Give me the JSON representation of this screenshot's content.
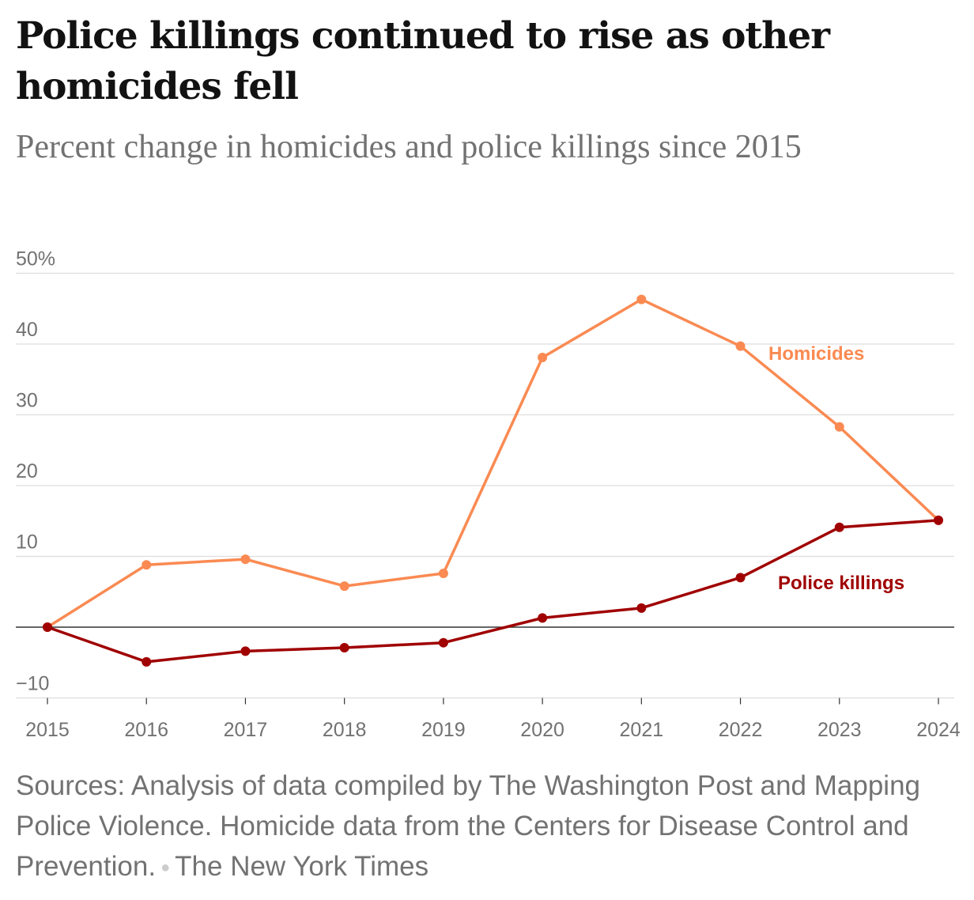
{
  "title": "Police killings continued to rise as other homicides fell",
  "subtitle": "Percent change in homicides and police killings since 2015",
  "footer": {
    "sources": "Sources: Analysis of data compiled by The Washington Post and Mapping Police Violence. Homicide data from the Centers for Disease Control and Prevention.",
    "credit": "The New York Times"
  },
  "chart_data": {
    "type": "line",
    "title": "Police killings continued to rise as other homicides fell",
    "subtitle": "Percent change in homicides and police killings since 2015",
    "xlabel": "",
    "ylabel": "Percent change",
    "x": [
      "2015",
      "2016",
      "2017",
      "2018",
      "2019",
      "2020",
      "2021",
      "2022",
      "2023",
      "2024"
    ],
    "ylim": [
      -10,
      50
    ],
    "yticks": [
      {
        "v": 50,
        "label": "50%"
      },
      {
        "v": 40,
        "label": "40"
      },
      {
        "v": 30,
        "label": "30"
      },
      {
        "v": 20,
        "label": "20"
      },
      {
        "v": 10,
        "label": "10"
      },
      {
        "v": 0,
        "label": ""
      },
      {
        "v": -10,
        "label": "−10"
      }
    ],
    "grid": true,
    "series": [
      {
        "name": "Homicides",
        "color": "#fa8a52",
        "values": [
          0,
          8.8,
          9.6,
          5.8,
          7.6,
          38.1,
          46.3,
          39.7,
          28.3,
          15.1
        ]
      },
      {
        "name": "Police killings",
        "color": "#a00000",
        "values": [
          0,
          -4.9,
          -3.4,
          -2.9,
          -2.2,
          1.3,
          2.7,
          7.0,
          14.1,
          15.1
        ]
      }
    ]
  }
}
